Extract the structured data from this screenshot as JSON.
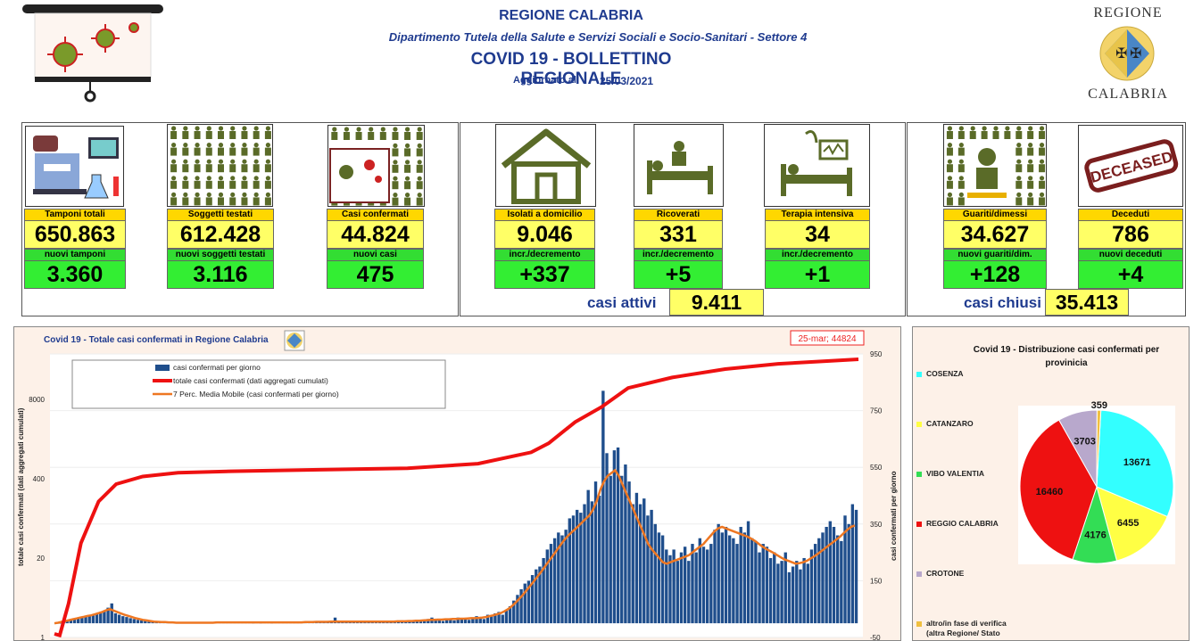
{
  "header": {
    "region": "REGIONE CALABRIA",
    "department": "Dipartimento Tutela della Salute e Servizi Sociali e Socio-Sanitari - Settore 4",
    "bulletin_title": "COVID 19 - BOLLETTINO REGIONALE",
    "updated_label": "Aggiornato al",
    "updated_date": "25/03/2021",
    "logo_top": "REGIONE",
    "logo_bottom": "CALABRIA"
  },
  "kpis": {
    "tamponi": {
      "label": "Tamponi totali",
      "value": "650.863",
      "new_label": "nuovi tamponi",
      "new_value": "3.360"
    },
    "soggetti": {
      "label": "Soggetti testati",
      "value": "612.428",
      "new_label": "nuovi soggetti testati",
      "new_value": "3.116"
    },
    "casi": {
      "label": "Casi confermati",
      "value": "44.824",
      "new_label": "nuovi casi",
      "new_value": "475"
    },
    "isolati": {
      "label": "Isolati a domicilio",
      "value": "9.046",
      "new_label": "incr./decremento",
      "new_value": "+337"
    },
    "ricoverati": {
      "label": "Ricoverati",
      "value": "331",
      "new_label": "incr./decremento",
      "new_value": "+5"
    },
    "terapia": {
      "label": "Terapia intensiva",
      "value": "34",
      "new_label": "incr./decremento",
      "new_value": "+1"
    },
    "guariti": {
      "label": "Guariti/dimessi",
      "value": "34.627",
      "new_label": "nuovi guariti/dim.",
      "new_value": "+128"
    },
    "deceduti": {
      "label": "Deceduti",
      "value": "786",
      "new_label": "nuovi deceduti",
      "new_value": "+4"
    }
  },
  "summary": {
    "active_label": "casi attivi",
    "active_value": "9.411",
    "closed_label": "casi chiusi",
    "closed_value": "35.413"
  },
  "icons": {
    "deceased_stamp": "DECEASED"
  },
  "colors": {
    "title_blue": "#1f3b8f",
    "kpi_yellow": "#ffff66",
    "kpi_green": "#33ee33",
    "bar_blue": "#1f4e8c",
    "cumulative_red": "#ee1111",
    "moving_avg_orange": "#ee7722"
  },
  "chart_data": [
    {
      "type": "bar",
      "title": "Covid 19 - Totale casi confermati in Regione Calabria",
      "annotation": "25-mar; 44824",
      "legend": [
        "casi confermati per giorno",
        "totale casi confermati (dati aggregati cumulati)",
        "7 Perc. Media Mobile (casi confermati per giorno)"
      ],
      "ylabel_left": "totale casi confermati (dati aggregati cumulati)",
      "ylabel_right": "casi confermati per giorno",
      "left_ticks": [
        "1",
        "20",
        "400",
        "8000"
      ],
      "right_ticks": [
        "-50",
        "150",
        "350",
        "550",
        "750",
        "950"
      ],
      "right_ylim": [
        -50,
        950
      ],
      "daily_series": [
        0,
        0,
        5,
        8,
        12,
        15,
        18,
        22,
        25,
        28,
        30,
        35,
        40,
        45,
        55,
        70,
        35,
        30,
        25,
        22,
        18,
        15,
        12,
        10,
        8,
        6,
        5,
        4,
        4,
        3,
        3,
        2,
        2,
        2,
        1,
        2,
        1,
        1,
        2,
        1,
        2,
        3,
        2,
        2,
        2,
        3,
        2,
        3,
        4,
        6,
        3,
        2,
        2,
        1,
        2,
        1,
        2,
        2,
        1,
        2,
        3,
        2,
        2,
        3,
        4,
        3,
        2,
        5,
        4,
        3,
        8,
        2,
        3,
        2,
        4,
        20,
        3,
        5,
        4,
        5,
        3,
        4,
        6,
        5,
        4,
        7,
        3,
        8,
        6,
        5,
        4,
        3,
        7,
        10,
        8,
        6,
        5,
        9,
        12,
        8,
        15,
        20,
        12,
        10,
        8,
        15,
        12,
        10,
        20,
        18,
        15,
        12,
        20,
        25,
        18,
        15,
        30,
        25,
        35,
        40,
        30,
        45,
        60,
        80,
        100,
        120,
        140,
        150,
        170,
        190,
        200,
        230,
        260,
        280,
        300,
        320,
        310,
        330,
        370,
        380,
        400,
        390,
        420,
        470,
        430,
        500,
        450,
        820,
        600,
        520,
        610,
        620,
        520,
        560,
        500,
        420,
        460,
        420,
        440,
        380,
        400,
        350,
        320,
        310,
        260,
        240,
        260,
        220,
        250,
        270,
        220,
        280,
        250,
        300,
        270,
        260,
        280,
        330,
        350,
        320,
        340,
        310,
        300,
        280,
        340,
        320,
        360,
        300,
        290,
        250,
        280,
        270,
        230,
        250,
        210,
        220,
        250,
        180,
        200,
        220,
        190,
        230,
        210,
        260,
        280,
        300,
        320,
        340,
        360,
        340,
        310,
        290,
        380,
        350,
        420,
        400
      ],
      "moving_avg_series": [
        0,
        2,
        5,
        8,
        11,
        14,
        17,
        20,
        23,
        26,
        28,
        32,
        36,
        40,
        46,
        50,
        45,
        40,
        35,
        30,
        26,
        22,
        18,
        15,
        12,
        10,
        8,
        6,
        5,
        4,
        4,
        3,
        3,
        2,
        2,
        2,
        2,
        2,
        2,
        2,
        2,
        2,
        2,
        2,
        3,
        3,
        3,
        3,
        3,
        3,
        3,
        3,
        3,
        3,
        3,
        3,
        3,
        3,
        3,
        3,
        3,
        3,
        3,
        3,
        3,
        3,
        3,
        3,
        4,
        4,
        4,
        5,
        5,
        5,
        5,
        6,
        6,
        6,
        6,
        6,
        6,
        6,
        6,
        6,
        6,
        6,
        6,
        6,
        6,
        6,
        6,
        6,
        6,
        7,
        7,
        7,
        8,
        8,
        9,
        9,
        10,
        11,
        12,
        12,
        13,
        13,
        14,
        14,
        15,
        15,
        16,
        16,
        17,
        18,
        18,
        19,
        20,
        22,
        25,
        28,
        32,
        36,
        42,
        50,
        60,
        72,
        86,
        100,
        116,
        132,
        148,
        165,
        182,
        200,
        218,
        236,
        254,
        272,
        290,
        305,
        318,
        330,
        342,
        355,
        368,
        380,
        400,
        430,
        470,
        500,
        520,
        530,
        540,
        520,
        490,
        460,
        430,
        400,
        370,
        340,
        310,
        280,
        260,
        245,
        230,
        215,
        210,
        215,
        220,
        225,
        230,
        235,
        240,
        250,
        260,
        270,
        280,
        295,
        310,
        325,
        335,
        340,
        335,
        330,
        325,
        320,
        315,
        310,
        305,
        298,
        290,
        280,
        270,
        262,
        255,
        248,
        240,
        232,
        225,
        220,
        215,
        210,
        212,
        215,
        220,
        228,
        236,
        245,
        255,
        265,
        275,
        285,
        295,
        305,
        318,
        330,
        340,
        345
      ]
    },
    {
      "type": "pie",
      "title": "Covid 19 - Distribuzione casi confermati per provinicia",
      "labels": [
        "COSENZA",
        "CATANZARO",
        "VIBO VALENTIA",
        "REGGIO CALABRIA",
        "CROTONE",
        "altro/in fase di verifica (altra Regione/ Stato"
      ],
      "values": [
        13671,
        6455,
        4176,
        16460,
        3703,
        359
      ],
      "colors": [
        "#33ffff",
        "#ffff44",
        "#33dd55",
        "#ee1111",
        "#b8a8cc",
        "#f0c040"
      ]
    }
  ]
}
